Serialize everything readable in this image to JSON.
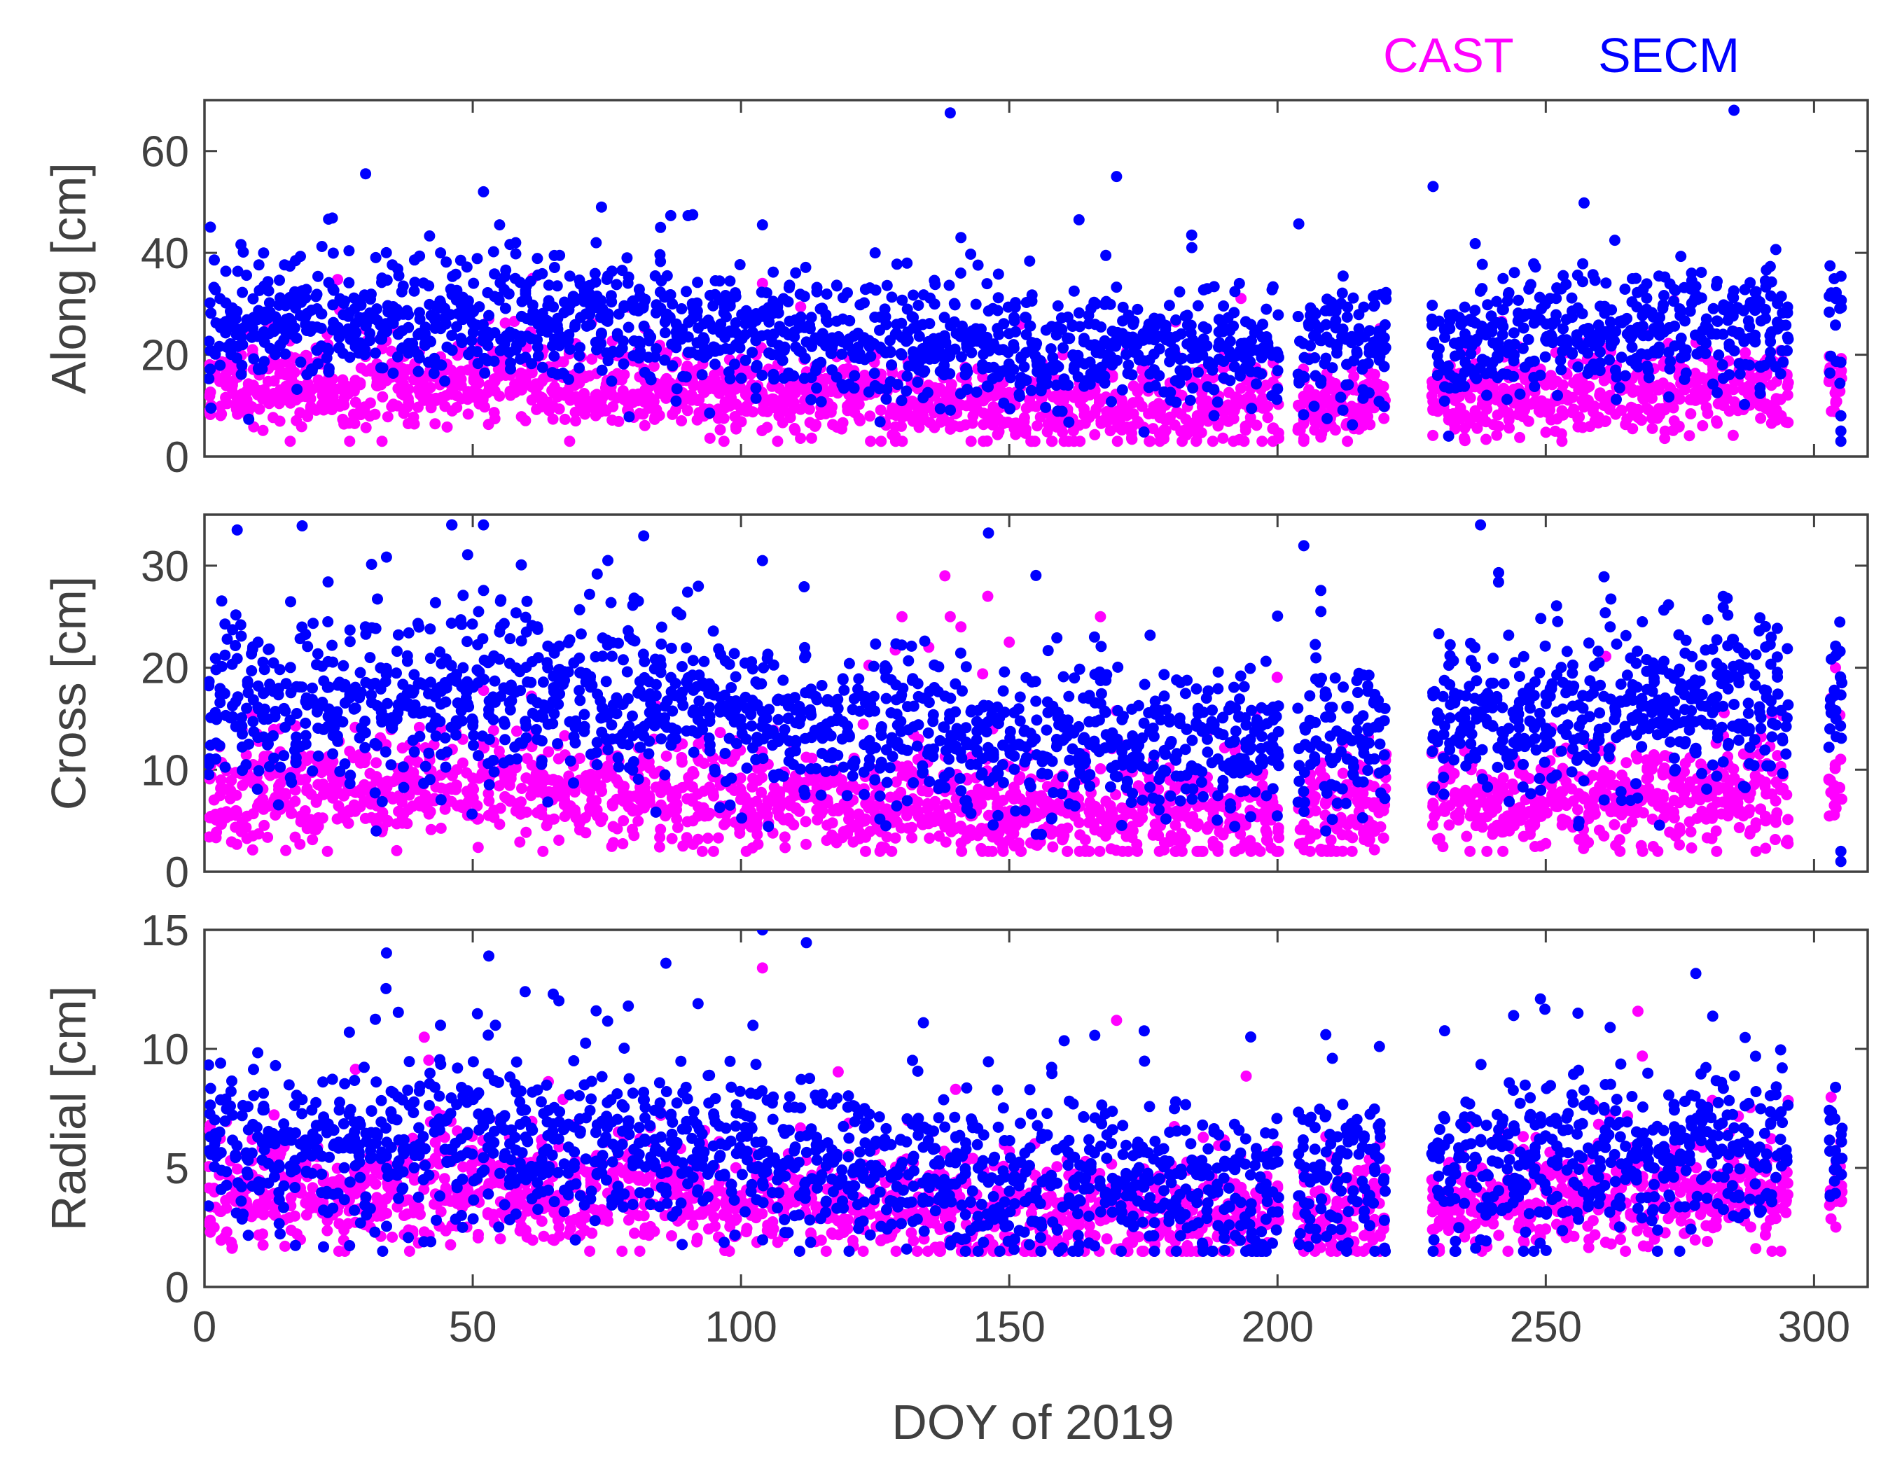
{
  "chart_data": {
    "type": "scatter",
    "title": "",
    "xlabel": "DOY of 2019",
    "xlim": [
      0,
      310
    ],
    "xticks": [
      0,
      50,
      100,
      150,
      200,
      250,
      300
    ],
    "legend": {
      "placement": "top-right",
      "entries": [
        {
          "name": "CAST",
          "color": "#ff00ff"
        },
        {
          "name": "SECM",
          "color": "#0000ff"
        }
      ]
    },
    "colors": {
      "CAST": "#ff00ff",
      "SECM": "#0000ff",
      "axis": "#404040"
    },
    "panels": [
      {
        "ylabel": "Along [cm]",
        "ylim": [
          0,
          70
        ],
        "yticks": [
          0,
          20,
          40,
          60
        ],
        "series": [
          {
            "name": "CAST",
            "base": 12,
            "spread": 4,
            "min": 3,
            "max": 35,
            "outliers": [
              [
                104,
                34
              ],
              [
                30,
                25
              ],
              [
                53,
                27
              ],
              [
                23,
                22
              ],
              [
                160,
                20
              ]
            ]
          },
          {
            "name": "SECM",
            "base": 24,
            "spread": 6,
            "min": 4,
            "max": 68,
            "outliers": [
              [
                139,
                67.5
              ],
              [
                52,
                52
              ],
              [
                170,
                55
              ],
              [
                74,
                49
              ],
              [
                91,
                47.5
              ],
              [
                163,
                46.5
              ],
              [
                104,
                45.5
              ],
              [
                55,
                45.5
              ],
              [
                184,
                43.5
              ],
              [
                141,
                43
              ],
              [
                73,
                42
              ],
              [
                58,
                42
              ],
              [
                85,
                45
              ],
              [
                168,
                39.5
              ],
              [
                125,
                40
              ],
              [
                44,
                40
              ],
              [
                305,
                8
              ],
              [
                305,
                5
              ],
              [
                305,
                3
              ]
            ]
          }
        ]
      },
      {
        "ylabel": "Cross [cm]",
        "ylim": [
          0,
          35
        ],
        "yticks": [
          0,
          10,
          20,
          30
        ],
        "series": [
          {
            "name": "CAST",
            "base": 7,
            "spread": 2.5,
            "min": 2,
            "max": 29,
            "outliers": [
              [
                138,
                29
              ],
              [
                146,
                27
              ],
              [
                139,
                25
              ],
              [
                130,
                25
              ],
              [
                167,
                25
              ],
              [
                150,
                22.5
              ],
              [
                135,
                22
              ],
              [
                141,
                24
              ],
              [
                304,
                20
              ]
            ]
          },
          {
            "name": "SECM",
            "base": 15,
            "spread": 4,
            "min": 1,
            "max": 34,
            "outliers": [
              [
                52,
                34
              ],
              [
                104,
                30.5
              ],
              [
                23,
                24.5
              ],
              [
                30,
                24
              ],
              [
                55,
                23.5
              ],
              [
                60,
                23.5
              ],
              [
                262,
                24
              ],
              [
                268,
                24.5
              ],
              [
                127,
                4.5
              ],
              [
                32,
                4
              ],
              [
                209,
                4
              ],
              [
                305,
                2
              ],
              [
                305,
                1
              ]
            ]
          }
        ]
      },
      {
        "ylabel": "Radial [cm]",
        "ylim": [
          0,
          15
        ],
        "yticks": [
          0,
          5,
          10,
          15
        ],
        "series": [
          {
            "name": "CAST",
            "base": 3.6,
            "spread": 1.1,
            "min": 1.5,
            "max": 13.5,
            "outliers": [
              [
                104,
                13.4
              ],
              [
                170,
                11.2
              ],
              [
                268,
                9.7
              ],
              [
                55,
                7
              ],
              [
                140,
                8.3
              ]
            ]
          },
          {
            "name": "SECM",
            "base": 5.2,
            "spread": 1.7,
            "min": 1.5,
            "max": 15,
            "outliers": [
              [
                104,
                15
              ],
              [
                53,
                13.9
              ],
              [
                86,
                13.6
              ],
              [
                65,
                12.3
              ],
              [
                73,
                11.6
              ],
              [
                79,
                11.8
              ],
              [
                92,
                11.9
              ],
              [
                134,
                11.1
              ],
              [
                249,
                12.1
              ],
              [
                244,
                11.4
              ],
              [
                256,
                11.5
              ],
              [
                262,
                10.9
              ],
              [
                195,
                10.5
              ],
              [
                209,
                10.6
              ],
              [
                219,
                10.1
              ],
              [
                27,
                10.7
              ],
              [
                3,
                9.4
              ]
            ]
          }
        ]
      }
    ]
  }
}
